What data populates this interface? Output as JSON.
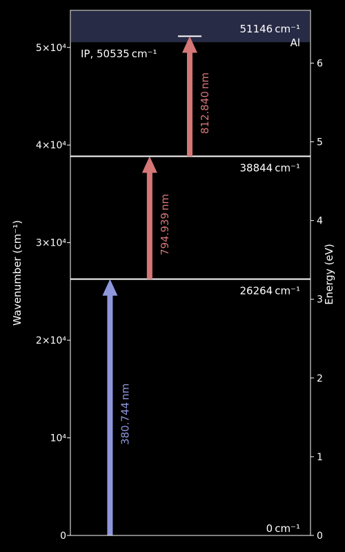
{
  "chart_data": {
    "type": "energy-level-diagram",
    "element_label": "Al",
    "ionization": {
      "label": "IP, 50535 cm⁻¹",
      "value_cm": 50535,
      "band_color": "#272b45"
    },
    "levels": [
      {
        "value_cm": 0,
        "label": "0 cm⁻¹"
      },
      {
        "value_cm": 26264,
        "label": "26264 cm⁻¹"
      },
      {
        "value_cm": 38844,
        "label": "38844 cm⁻¹"
      },
      {
        "value_cm": 51146,
        "label": "51146 cm⁻¹"
      }
    ],
    "transitions": [
      {
        "from_cm": 0,
        "to_cm": 26264,
        "label": "380.744 nm",
        "color": "#8f97dc",
        "x_cm_frac": 0.165
      },
      {
        "from_cm": 26264,
        "to_cm": 38844,
        "label": "794.939 nm",
        "color": "#d57677",
        "x_cm_frac": 0.33
      },
      {
        "from_cm": 38844,
        "to_cm": 51146,
        "label": "812.840 nm",
        "color": "#d57677",
        "x_cm_frac": 0.497
      }
    ],
    "y_left": {
      "label": "Wavenumber (cm⁻¹)",
      "range": [
        0,
        53800
      ],
      "ticks": [
        {
          "value": 0,
          "label": "0"
        },
        {
          "value": 10000,
          "label": "10⁴"
        },
        {
          "value": 20000,
          "label": "2×10⁴"
        },
        {
          "value": 30000,
          "label": "3×10⁴"
        },
        {
          "value": 40000,
          "label": "4×10⁴"
        },
        {
          "value": 50000,
          "label": "5×10⁴"
        }
      ]
    },
    "y_right": {
      "label": "Energy (eV)",
      "range": [
        0,
        6.67
      ],
      "ticks": [
        {
          "value": 0,
          "label": "0"
        },
        {
          "value": 1,
          "label": "1"
        },
        {
          "value": 2,
          "label": "2"
        },
        {
          "value": 3,
          "label": "3"
        },
        {
          "value": 4,
          "label": "4"
        },
        {
          "value": 5,
          "label": "5"
        },
        {
          "value": 6,
          "label": "6"
        }
      ]
    },
    "colors": {
      "background": "#000000",
      "foreground": "#ffffff"
    }
  }
}
